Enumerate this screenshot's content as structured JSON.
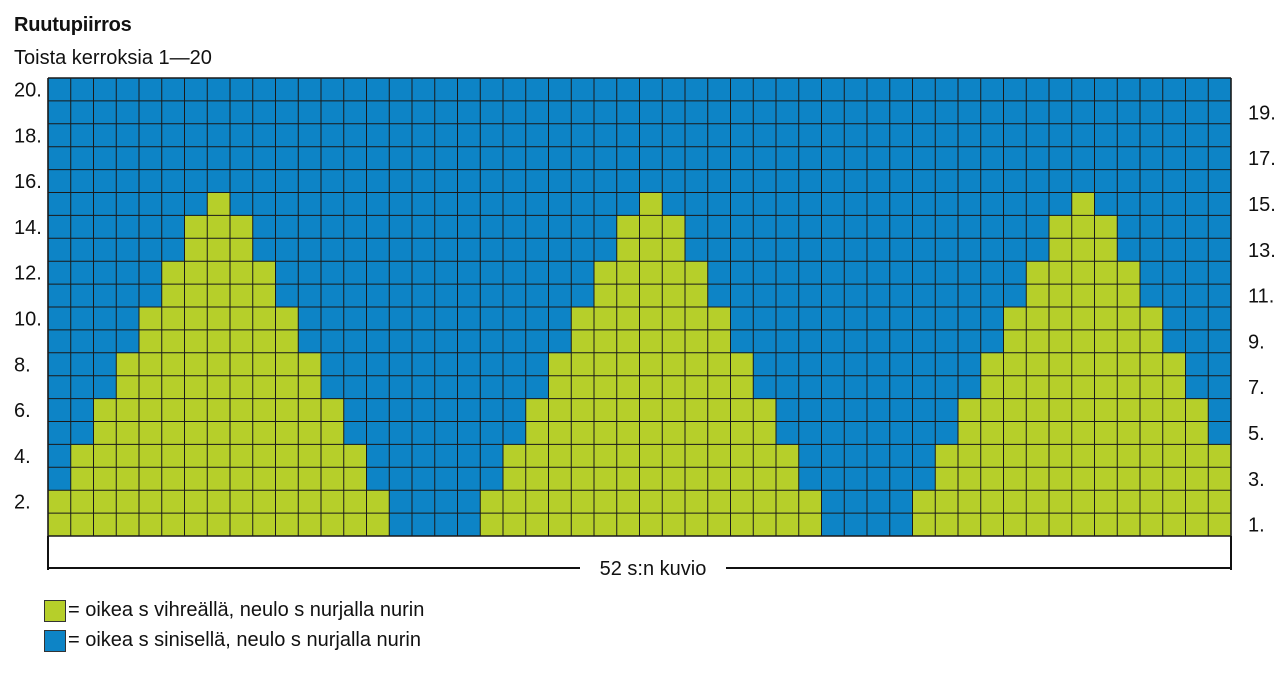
{
  "chart_title": "Ruutupiirros",
  "chart_subtitle": "Toista kerroksia 1—20",
  "colors": {
    "green": "#b6cf2a",
    "blue": "#0d84c6",
    "grid_line": "#1a1a1a"
  },
  "chart_data": {
    "type": "heatmap",
    "columns": 52,
    "rows": 20,
    "left_row_labels": [
      "2.",
      "4.",
      "6.",
      "8.",
      "10.",
      "12.",
      "14.",
      "16.",
      "18.",
      "20."
    ],
    "right_row_labels": [
      "1.",
      "3.",
      "5.",
      "7.",
      "9.",
      "11.",
      "13.",
      "15.",
      "17.",
      "19."
    ],
    "width_label": "52 s:n kuvio",
    "motif_repeat": 19,
    "green_runs_by_row": [
      [
        0,
        14
      ],
      [
        0,
        14
      ],
      [
        1,
        13
      ],
      [
        1,
        13
      ],
      [
        2,
        12
      ],
      [
        2,
        12
      ],
      [
        3,
        11
      ],
      [
        3,
        11
      ],
      [
        4,
        10
      ],
      [
        4,
        10
      ],
      [
        5,
        9
      ],
      [
        5,
        9
      ],
      [
        6,
        8
      ],
      [
        6,
        8
      ],
      [
        7,
        7
      ],
      null,
      null,
      null,
      null,
      null
    ]
  },
  "legend": [
    {
      "color": "green",
      "label": "= oikea s vihreällä, neulo s nurjalla nurin"
    },
    {
      "color": "blue",
      "label": "= oikea s sinisellä, neulo s nurjalla nurin"
    }
  ]
}
